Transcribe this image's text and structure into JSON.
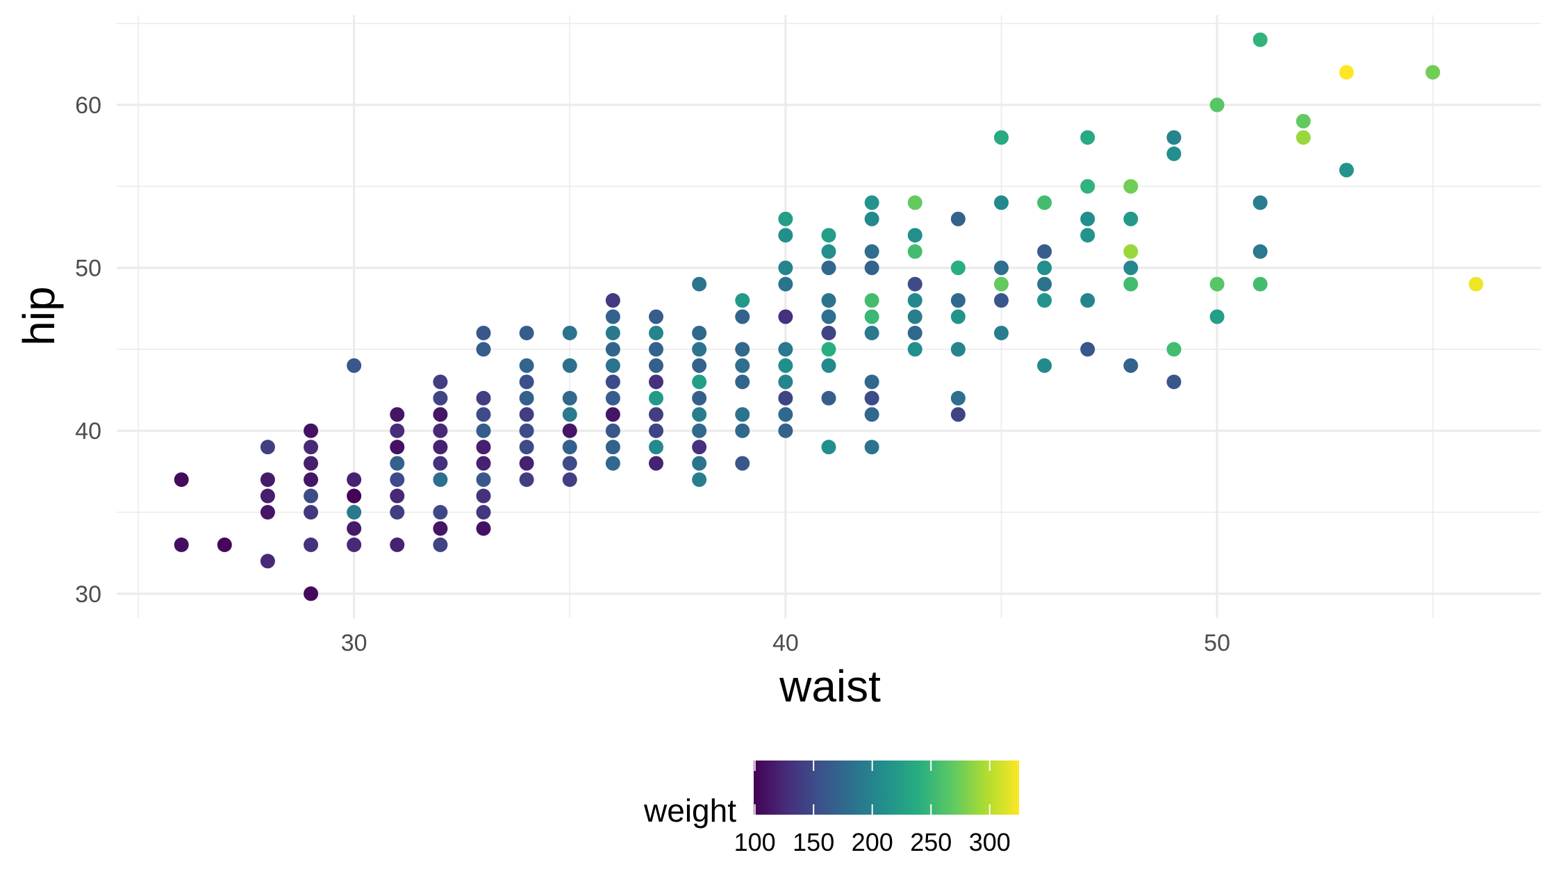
{
  "chart_data": {
    "type": "scatter",
    "xlabel": "waist",
    "ylabel": "hip",
    "xlim": [
      24.5,
      57.5
    ],
    "ylim": [
      28.5,
      65.5
    ],
    "x_ticks": [
      30,
      40,
      50
    ],
    "y_ticks": [
      30,
      40,
      50,
      60
    ],
    "x_tick_labels": [
      "30",
      "40",
      "50"
    ],
    "y_tick_labels": [
      "30",
      "40",
      "50",
      "60"
    ],
    "grid": true,
    "legend": {
      "title": "weight",
      "placement": "bottom",
      "type": "colorbar",
      "palette": "viridis",
      "range": [
        99,
        325
      ],
      "ticks": [
        100,
        150,
        200,
        250,
        300
      ],
      "tick_labels": [
        "100",
        "150",
        "200",
        "250",
        "300"
      ]
    },
    "points": [
      [
        26,
        37,
        105
      ],
      [
        26,
        33,
        108
      ],
      [
        27,
        33,
        103
      ],
      [
        28,
        39,
        140
      ],
      [
        28,
        37,
        115
      ],
      [
        28,
        36,
        118
      ],
      [
        28,
        35,
        112
      ],
      [
        28,
        32,
        125
      ],
      [
        29,
        40,
        110
      ],
      [
        29,
        39,
        125
      ],
      [
        29,
        38,
        118
      ],
      [
        29,
        37,
        112
      ],
      [
        29,
        36,
        150
      ],
      [
        29,
        35,
        135
      ],
      [
        29,
        33,
        130
      ],
      [
        29,
        30,
        105
      ],
      [
        30,
        44,
        160
      ],
      [
        30,
        37,
        120
      ],
      [
        30,
        36,
        100
      ],
      [
        30,
        35,
        190
      ],
      [
        30,
        34,
        115
      ],
      [
        30,
        33,
        125
      ],
      [
        31,
        41,
        112
      ],
      [
        31,
        40,
        128
      ],
      [
        31,
        39,
        110
      ],
      [
        31,
        38,
        170
      ],
      [
        31,
        37,
        150
      ],
      [
        31,
        36,
        125
      ],
      [
        31,
        35,
        140
      ],
      [
        31,
        33,
        120
      ],
      [
        32,
        43,
        140
      ],
      [
        32,
        42,
        145
      ],
      [
        32,
        41,
        112
      ],
      [
        32,
        40,
        125
      ],
      [
        32,
        39,
        120
      ],
      [
        32,
        38,
        130
      ],
      [
        32,
        37,
        180
      ],
      [
        32,
        35,
        148
      ],
      [
        32,
        34,
        112
      ],
      [
        32,
        33,
        145
      ],
      [
        33,
        46,
        160
      ],
      [
        33,
        45,
        165
      ],
      [
        33,
        42,
        140
      ],
      [
        33,
        41,
        150
      ],
      [
        33,
        40,
        165
      ],
      [
        33,
        39,
        118
      ],
      [
        33,
        38,
        120
      ],
      [
        33,
        37,
        160
      ],
      [
        33,
        36,
        130
      ],
      [
        33,
        35,
        135
      ],
      [
        33,
        34,
        110
      ],
      [
        34,
        46,
        165
      ],
      [
        34,
        44,
        172
      ],
      [
        34,
        43,
        155
      ],
      [
        34,
        42,
        168
      ],
      [
        34,
        41,
        140
      ],
      [
        34,
        40,
        150
      ],
      [
        34,
        39,
        150
      ],
      [
        34,
        38,
        120
      ],
      [
        34,
        37,
        140
      ],
      [
        35,
        46,
        185
      ],
      [
        35,
        44,
        182
      ],
      [
        35,
        42,
        175
      ],
      [
        35,
        41,
        190
      ],
      [
        35,
        40,
        112
      ],
      [
        35,
        39,
        168
      ],
      [
        35,
        38,
        150
      ],
      [
        35,
        37,
        140
      ],
      [
        36,
        48,
        138
      ],
      [
        36,
        47,
        170
      ],
      [
        36,
        46,
        190
      ],
      [
        36,
        45,
        172
      ],
      [
        36,
        44,
        185
      ],
      [
        36,
        43,
        150
      ],
      [
        36,
        42,
        165
      ],
      [
        36,
        41,
        112
      ],
      [
        36,
        40,
        160
      ],
      [
        36,
        39,
        170
      ],
      [
        36,
        38,
        175
      ],
      [
        37,
        47,
        165
      ],
      [
        37,
        46,
        200
      ],
      [
        37,
        45,
        170
      ],
      [
        37,
        44,
        168
      ],
      [
        37,
        43,
        130
      ],
      [
        37,
        42,
        220
      ],
      [
        37,
        41,
        140
      ],
      [
        37,
        40,
        145
      ],
      [
        37,
        39,
        205
      ],
      [
        37,
        38,
        120
      ],
      [
        38,
        49,
        185
      ],
      [
        38,
        46,
        175
      ],
      [
        38,
        45,
        185
      ],
      [
        38,
        44,
        170
      ],
      [
        38,
        43,
        225
      ],
      [
        38,
        42,
        168
      ],
      [
        38,
        41,
        195
      ],
      [
        38,
        40,
        175
      ],
      [
        38,
        39,
        130
      ],
      [
        38,
        38,
        185
      ],
      [
        38,
        37,
        195
      ],
      [
        39,
        48,
        220
      ],
      [
        39,
        47,
        170
      ],
      [
        39,
        45,
        175
      ],
      [
        39,
        44,
        180
      ],
      [
        39,
        43,
        172
      ],
      [
        39,
        41,
        185
      ],
      [
        39,
        40,
        175
      ],
      [
        39,
        38,
        160
      ],
      [
        40,
        53,
        225
      ],
      [
        40,
        52,
        210
      ],
      [
        40,
        50,
        200
      ],
      [
        40,
        49,
        185
      ],
      [
        40,
        47,
        130
      ],
      [
        40,
        45,
        190
      ],
      [
        40,
        44,
        210
      ],
      [
        40,
        43,
        200
      ],
      [
        40,
        42,
        145
      ],
      [
        40,
        41,
        175
      ],
      [
        40,
        40,
        170
      ],
      [
        41,
        52,
        225
      ],
      [
        41,
        51,
        210
      ],
      [
        41,
        50,
        175
      ],
      [
        41,
        48,
        185
      ],
      [
        41,
        47,
        180
      ],
      [
        41,
        46,
        145
      ],
      [
        41,
        45,
        240
      ],
      [
        41,
        44,
        205
      ],
      [
        41,
        42,
        165
      ],
      [
        41,
        39,
        210
      ],
      [
        42,
        54,
        215
      ],
      [
        42,
        53,
        205
      ],
      [
        42,
        51,
        180
      ],
      [
        42,
        50,
        170
      ],
      [
        42,
        48,
        255
      ],
      [
        42,
        47,
        250
      ],
      [
        42,
        46,
        190
      ],
      [
        42,
        43,
        175
      ],
      [
        42,
        42,
        150
      ],
      [
        42,
        41,
        175
      ],
      [
        42,
        39,
        185
      ],
      [
        43,
        54,
        270
      ],
      [
        43,
        52,
        210
      ],
      [
        43,
        51,
        255
      ],
      [
        43,
        49,
        150
      ],
      [
        43,
        48,
        205
      ],
      [
        43,
        47,
        195
      ],
      [
        43,
        46,
        175
      ],
      [
        43,
        45,
        210
      ],
      [
        44,
        53,
        170
      ],
      [
        44,
        50,
        240
      ],
      [
        44,
        48,
        175
      ],
      [
        44,
        47,
        215
      ],
      [
        44,
        45,
        200
      ],
      [
        44,
        42,
        180
      ],
      [
        44,
        41,
        145
      ],
      [
        45,
        58,
        235
      ],
      [
        45,
        54,
        205
      ],
      [
        45,
        50,
        180
      ],
      [
        45,
        49,
        270
      ],
      [
        45,
        48,
        160
      ],
      [
        45,
        46,
        195
      ],
      [
        46,
        54,
        255
      ],
      [
        46,
        51,
        165
      ],
      [
        46,
        50,
        210
      ],
      [
        46,
        49,
        185
      ],
      [
        46,
        48,
        215
      ],
      [
        46,
        44,
        205
      ],
      [
        47,
        58,
        235
      ],
      [
        47,
        55,
        245
      ],
      [
        47,
        53,
        210
      ],
      [
        47,
        52,
        215
      ],
      [
        47,
        48,
        200
      ],
      [
        47,
        45,
        160
      ],
      [
        48,
        55,
        275
      ],
      [
        48,
        53,
        220
      ],
      [
        48,
        51,
        290
      ],
      [
        48,
        50,
        205
      ],
      [
        48,
        49,
        255
      ],
      [
        48,
        44,
        170
      ],
      [
        49,
        58,
        200
      ],
      [
        49,
        57,
        210
      ],
      [
        49,
        45,
        255
      ],
      [
        49,
        43,
        160
      ],
      [
        50,
        60,
        265
      ],
      [
        50,
        49,
        265
      ],
      [
        50,
        47,
        225
      ],
      [
        51,
        64,
        245
      ],
      [
        51,
        54,
        195
      ],
      [
        51,
        51,
        190
      ],
      [
        51,
        49,
        255
      ],
      [
        52,
        59,
        270
      ],
      [
        52,
        58,
        290
      ],
      [
        53,
        62,
        325
      ],
      [
        53,
        56,
        215
      ],
      [
        55,
        62,
        275
      ],
      [
        56,
        49,
        320
      ]
    ]
  }
}
